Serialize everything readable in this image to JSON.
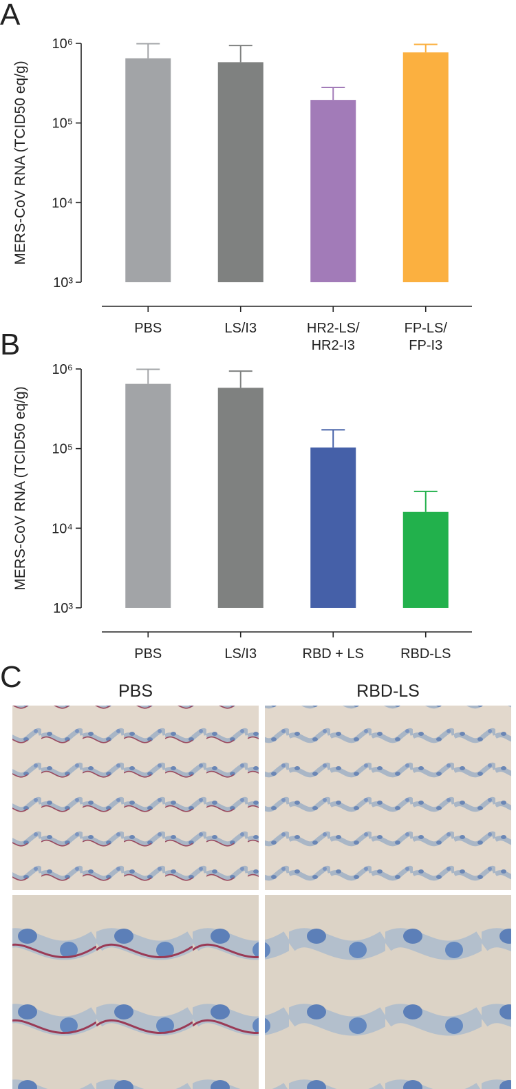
{
  "panel_labels": [
    "A",
    "B",
    "C"
  ],
  "micrographs": {
    "columns": [
      "PBS",
      "RBD-LS"
    ]
  },
  "chart_data": [
    {
      "type": "bar",
      "y_label": "MERS-CoV RNA (TCID50 eq/g)",
      "log_scale": true,
      "categories": [
        "PBS",
        "LS/I3",
        "HR2-LS/\nHR2-I3",
        "FP-LS/\nFP-I3"
      ],
      "values": [
        650000,
        580000,
        195000,
        770000
      ],
      "errors": [
        340000,
        360000,
        85000,
        200000
      ],
      "colors": [
        "#a2a4a7",
        "#7f8180",
        "#a27bb8",
        "#fbb040"
      ],
      "ylim": [
        1000,
        1000000
      ],
      "yticks": [
        {
          "value": 1000,
          "label": "10³"
        },
        {
          "value": 10000,
          "label": "10⁴"
        },
        {
          "value": 100000,
          "label": "10⁵"
        },
        {
          "value": 1000000,
          "label": "10⁶"
        }
      ]
    },
    {
      "type": "bar",
      "y_label": "MERS-CoV RNA (TCID50 eq/g)",
      "log_scale": true,
      "categories": [
        "PBS",
        "LS/I3",
        "RBD + LS",
        "RBD-LS"
      ],
      "values": [
        650000,
        580000,
        103000,
        16000
      ],
      "errors": [
        340000,
        360000,
        69000,
        13000
      ],
      "colors": [
        "#a2a4a7",
        "#7f8180",
        "#4560a8",
        "#22b14c"
      ],
      "ylim": [
        1000,
        1000000
      ],
      "yticks": [
        {
          "value": 1000,
          "label": "10³"
        },
        {
          "value": 10000,
          "label": "10⁴"
        },
        {
          "value": 100000,
          "label": "10⁵"
        },
        {
          "value": 1000000,
          "label": "10⁶"
        }
      ]
    }
  ]
}
